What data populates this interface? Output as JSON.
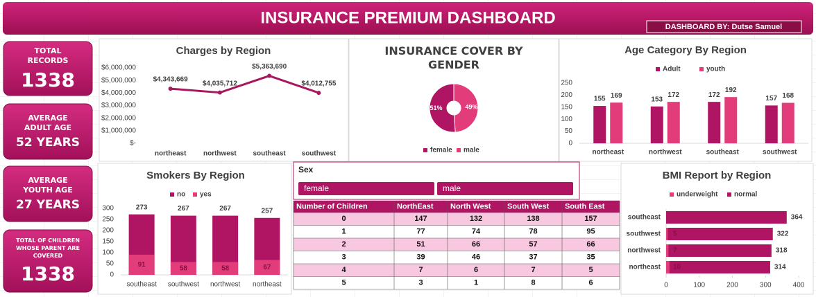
{
  "header": {
    "title": "INSURANCE PREMIUM DASHBOARD",
    "byline": "DASHBOARD BY: Dutse Samuel"
  },
  "kpis": [
    {
      "label": "TOTAL RECORDS",
      "value": "1338"
    },
    {
      "label": "AVERAGE ADULT AGE",
      "value": "52 YEARS"
    },
    {
      "label": "AVERAGE YOUTH AGE",
      "value": "27 YEARS"
    },
    {
      "label": "TOTAL OF CHILDREN WHOSE PARENT ARE COVERED",
      "value": "1338"
    }
  ],
  "chart_data": [
    {
      "type": "line",
      "title": "Charges by Region",
      "categories": [
        "northeast",
        "northwest",
        "southeast",
        "southwest"
      ],
      "values": [
        4343669,
        4035712,
        5363690,
        4012755
      ],
      "value_labels": [
        "$4,343,669",
        "$4,035,712",
        "$5,363,690",
        "$4,012,755"
      ],
      "color": "#a8175e",
      "ylim": [
        0,
        6000000
      ],
      "yticks": [
        {
          "value": 0,
          "label": "$-"
        },
        {
          "value": 1000000,
          "label": "$1,000,000"
        },
        {
          "value": 2000000,
          "label": "$2,000,000"
        },
        {
          "value": 3000000,
          "label": "$3,000,000"
        },
        {
          "value": 4000000,
          "label": "$4,000,000"
        },
        {
          "value": 5000000,
          "label": "$5,000,000"
        },
        {
          "value": 6000000,
          "label": "$6,000,000"
        }
      ]
    },
    {
      "type": "pie",
      "title": "INSURANCE COVER BY GENDER",
      "categories": [
        "female",
        "male"
      ],
      "values": [
        51,
        49
      ],
      "value_labels": [
        "51%",
        "49%"
      ],
      "colors": [
        "#b01563",
        "#e23d7a"
      ],
      "donut": true
    },
    {
      "type": "bar",
      "title": "Age Category By Region",
      "categories": [
        "northeast",
        "northwest",
        "southeast",
        "southwest"
      ],
      "series": [
        {
          "name": "Adult",
          "color": "#b01563",
          "values": [
            155,
            153,
            172,
            157
          ]
        },
        {
          "name": "youth",
          "color": "#e23d7a",
          "values": [
            169,
            172,
            192,
            168
          ]
        }
      ],
      "ylim": [
        0,
        250
      ],
      "yticks": [
        0,
        50,
        100,
        150,
        200,
        250
      ],
      "overlap": false
    },
    {
      "type": "bar",
      "title": "Smokers By Region",
      "categories": [
        "southeast",
        "southwest",
        "northwest",
        "northeast"
      ],
      "series": [
        {
          "name": "no",
          "color": "#b01563",
          "values": [
            273,
            267,
            267,
            257
          ]
        },
        {
          "name": "yes",
          "color": "#e23d7a",
          "values": [
            91,
            58,
            58,
            67
          ]
        }
      ],
      "ylim": [
        0,
        300
      ],
      "yticks": [
        0,
        50,
        100,
        150,
        200,
        250,
        300
      ],
      "overlap": true
    },
    {
      "type": "barh",
      "title": "BMI Report by Region",
      "categories": [
        "southeast",
        "southwest",
        "northwest",
        "northeast"
      ],
      "series": [
        {
          "name": "underweight",
          "color": "#e23d7a",
          "values": [
            null,
            5,
            7,
            10
          ]
        },
        {
          "name": "normal",
          "color": "#b01563",
          "values": [
            364,
            322,
            318,
            314
          ]
        }
      ],
      "xlim": [
        0,
        400
      ],
      "xticks": [
        0,
        100,
        200,
        300,
        400
      ],
      "overlap": true
    }
  ],
  "slicer": {
    "title": "Sex",
    "items": [
      "female",
      "male"
    ]
  },
  "table": {
    "header": [
      "Number of Children",
      "NorthEast",
      "North West",
      "South West",
      "South East"
    ],
    "rows": [
      [
        0,
        147,
        132,
        138,
        157
      ],
      [
        1,
        77,
        74,
        78,
        95
      ],
      [
        2,
        51,
        66,
        57,
        66
      ],
      [
        3,
        39,
        46,
        37,
        35
      ],
      [
        4,
        7,
        6,
        7,
        5
      ],
      [
        5,
        3,
        1,
        8,
        6
      ]
    ]
  }
}
